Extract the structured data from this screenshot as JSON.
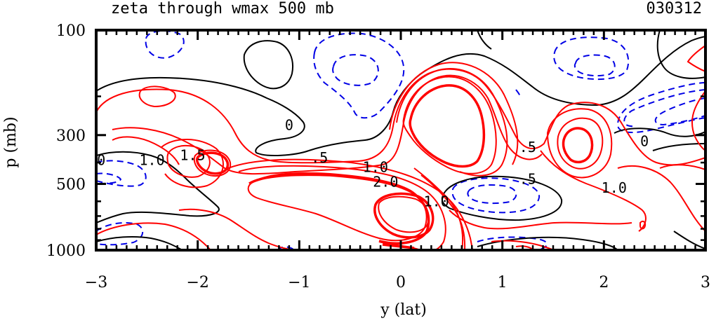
{
  "chart_data": {
    "type": "contour",
    "title": "zeta through wmax 500 mb",
    "date_label": "030312",
    "xlabel": "y (lat)",
    "ylabel": "p (mb)",
    "xlim": [
      -3,
      3
    ],
    "ylim": [
      1000,
      100
    ],
    "yscale": "log",
    "x_ticks": [
      "−3",
      "−2",
      "−1",
      "0",
      "1",
      "2",
      "3"
    ],
    "y_ticks": [
      "100",
      "300",
      "500",
      "1000"
    ],
    "contour_labels": [
      {
        "text": "0",
        "x": -2.95,
        "p": 390
      },
      {
        "text": "1.0",
        "x": -2.45,
        "p": 390
      },
      {
        "text": "1.5",
        "x": -2.05,
        "p": 370
      },
      {
        "text": "0",
        "x": -1.1,
        "p": 270
      },
      {
        "text": ".5",
        "x": -0.8,
        "p": 380
      },
      {
        "text": "1.0",
        "x": -0.25,
        "p": 420
      },
      {
        "text": "2.0",
        "x": -0.15,
        "p": 490
      },
      {
        "text": "1.0",
        "x": 0.35,
        "p": 600
      },
      {
        "text": ".5",
        "x": 1.25,
        "p": 340
      },
      {
        "text": ".5",
        "x": 1.25,
        "p": 475
      },
      {
        "text": "0",
        "x": 2.4,
        "p": 320
      },
      {
        "text": "1.0",
        "x": 2.1,
        "p": 520
      }
    ],
    "positive_color": "#ff0000",
    "zero_color": "#000000",
    "negative_color": "#0000e6"
  }
}
